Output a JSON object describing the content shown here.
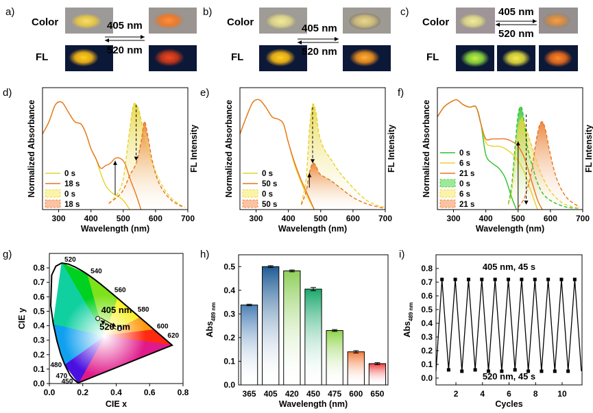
{
  "colors": {
    "orange": "#e8731e",
    "yellow": "#e6d22a",
    "green": "#2cc12a",
    "peach": "#f6a88a",
    "bars": [
      "#4a7fb5",
      "#1f5b96",
      "#8fcf5a",
      "#1aa86c",
      "#8fd44a",
      "#f07a3a",
      "#ee3a3a"
    ]
  },
  "row_a": {
    "label": "a)",
    "color_label": "Color",
    "fl_label": "FL",
    "wl_top": "405 nm",
    "wl_bottom": "520 nm"
  },
  "row_b": {
    "label": "b)",
    "color_label": "Color",
    "fl_label": "FL",
    "wl_top": "405 nm",
    "wl_bottom": "520 nm"
  },
  "row_c": {
    "label": "c)",
    "color_label": "Color",
    "fl_label": "FL",
    "wl_top": "405 nm",
    "wl_bottom": "520 nm"
  },
  "chart_data": [
    {
      "id": "d",
      "panel_label": "d)",
      "type": "line",
      "xlabel": "Wavelength (nm)",
      "ylabel_left": "Normalized Absorbance",
      "ylabel_right": "FL Intensity",
      "xlim": [
        250,
        700
      ],
      "xticks": [
        300,
        400,
        500,
        600,
        700
      ],
      "legend": [
        "0 s",
        "18 s",
        "0 s",
        "18 s"
      ],
      "series": [
        {
          "name": "0 s",
          "kind": "abs",
          "color": "#e6d22a",
          "x": [
            250,
            270,
            290,
            310,
            330,
            350,
            370,
            385,
            400,
            415,
            430,
            445,
            460,
            475,
            490,
            505,
            520
          ],
          "y": [
            0.62,
            0.72,
            0.86,
            0.88,
            0.8,
            0.72,
            0.7,
            0.62,
            0.5,
            0.42,
            0.3,
            0.2,
            0.15,
            0.12,
            0.1,
            0.06,
            0.0
          ]
        },
        {
          "name": "18 s",
          "kind": "abs",
          "color": "#e8731e",
          "x": [
            250,
            270,
            290,
            310,
            330,
            350,
            370,
            385,
            400,
            415,
            430,
            445,
            460,
            475,
            490,
            505,
            520,
            540,
            555
          ],
          "y": [
            0.62,
            0.72,
            0.86,
            0.88,
            0.8,
            0.72,
            0.7,
            0.62,
            0.5,
            0.42,
            0.34,
            0.36,
            0.38,
            0.42,
            0.42,
            0.38,
            0.26,
            0.12,
            0.0
          ]
        },
        {
          "name": "0 s",
          "kind": "fl",
          "color": "#e6d22a",
          "x": [
            455,
            480,
            500,
            515,
            530,
            540,
            550,
            565,
            585,
            610,
            640,
            670,
            690
          ],
          "y": [
            0.05,
            0.12,
            0.25,
            0.55,
            0.84,
            0.86,
            0.8,
            0.62,
            0.42,
            0.25,
            0.12,
            0.05,
            0.02
          ]
        },
        {
          "name": "18 s",
          "kind": "fl",
          "color": "#e8731e",
          "x": [
            455,
            480,
            500,
            520,
            540,
            555,
            565,
            575,
            590,
            610,
            640,
            670,
            690
          ],
          "y": [
            0.05,
            0.1,
            0.16,
            0.28,
            0.38,
            0.55,
            0.72,
            0.62,
            0.4,
            0.22,
            0.1,
            0.04,
            0.02
          ]
        }
      ]
    },
    {
      "id": "e",
      "panel_label": "e)",
      "type": "line",
      "xlabel": "Wavelength (nm)",
      "ylabel_left": "Normalized Absorbance",
      "ylabel_right": "FL Intensity",
      "xlim": [
        250,
        700
      ],
      "xticks": [
        300,
        400,
        500,
        600,
        700
      ],
      "legend": [
        "0 s",
        "50 s",
        "0 s",
        "50 s"
      ],
      "series": [
        {
          "name": "0 s",
          "kind": "abs",
          "color": "#e6d22a",
          "x": [
            250,
            270,
            290,
            310,
            330,
            350,
            370,
            385,
            400,
            420,
            440,
            460,
            480
          ],
          "y": [
            0.62,
            0.76,
            0.88,
            0.9,
            0.84,
            0.76,
            0.74,
            0.7,
            0.55,
            0.36,
            0.22,
            0.1,
            0.0
          ]
        },
        {
          "name": "50 s",
          "kind": "abs",
          "color": "#e8731e",
          "x": [
            250,
            270,
            290,
            310,
            330,
            350,
            370,
            385,
            400,
            420,
            440,
            460,
            480
          ],
          "y": [
            0.62,
            0.76,
            0.88,
            0.9,
            0.84,
            0.76,
            0.74,
            0.7,
            0.55,
            0.38,
            0.24,
            0.12,
            0.0
          ]
        },
        {
          "name": "0 s",
          "kind": "fl",
          "color": "#e6d22a",
          "x": [
            440,
            455,
            465,
            475,
            485,
            495,
            510,
            530,
            560,
            600,
            640,
            680,
            700
          ],
          "y": [
            0.05,
            0.25,
            0.65,
            0.86,
            0.8,
            0.62,
            0.5,
            0.42,
            0.3,
            0.18,
            0.08,
            0.03,
            0.02
          ]
        },
        {
          "name": "50 s",
          "kind": "fl",
          "color": "#e8731e",
          "x": [
            440,
            455,
            465,
            475,
            485,
            495,
            510,
            530,
            560,
            600,
            640,
            680,
            700
          ],
          "y": [
            0.04,
            0.15,
            0.3,
            0.38,
            0.36,
            0.3,
            0.27,
            0.24,
            0.18,
            0.1,
            0.05,
            0.02,
            0.01
          ]
        }
      ]
    },
    {
      "id": "f",
      "panel_label": "f)",
      "type": "line",
      "xlabel": "Wavelength (nm)",
      "ylabel_left": "Normalized Absorbance",
      "ylabel_right": "FL Intensity",
      "xlim": [
        250,
        700
      ],
      "xticks": [
        300,
        400,
        500,
        600,
        700
      ],
      "legend": [
        "0 s",
        "6 s",
        "21 s",
        "0 s",
        "6 s",
        "21 s"
      ],
      "series": [
        {
          "name": "0 s",
          "kind": "abs",
          "color": "#2cc12a",
          "x": [
            250,
            270,
            290,
            310,
            330,
            350,
            370,
            385,
            400,
            420,
            440,
            460,
            480,
            495
          ],
          "y": [
            0.76,
            0.84,
            0.88,
            0.9,
            0.86,
            0.84,
            0.84,
            0.7,
            0.45,
            0.38,
            0.34,
            0.26,
            0.1,
            0.0
          ]
        },
        {
          "name": "6 s",
          "kind": "abs",
          "color": "#e6d22a",
          "x": [
            250,
            270,
            290,
            310,
            330,
            350,
            370,
            385,
            400,
            420,
            440,
            460,
            480,
            500,
            520,
            540,
            560
          ],
          "y": [
            0.76,
            0.84,
            0.88,
            0.9,
            0.86,
            0.84,
            0.84,
            0.7,
            0.55,
            0.52,
            0.52,
            0.5,
            0.46,
            0.4,
            0.3,
            0.15,
            0.0
          ]
        },
        {
          "name": "21 s",
          "kind": "abs",
          "color": "#e8731e",
          "x": [
            250,
            270,
            290,
            310,
            330,
            350,
            370,
            385,
            400,
            420,
            440,
            460,
            480,
            500,
            520,
            540,
            560,
            575
          ],
          "y": [
            0.76,
            0.84,
            0.88,
            0.9,
            0.86,
            0.84,
            0.84,
            0.7,
            0.58,
            0.58,
            0.58,
            0.58,
            0.56,
            0.52,
            0.42,
            0.25,
            0.08,
            0.0
          ]
        },
        {
          "name": "0 s",
          "kind": "fl",
          "color": "#2cc12a",
          "x": [
            470,
            480,
            490,
            500,
            510,
            520,
            530,
            545,
            560,
            580,
            610,
            650,
            690
          ],
          "y": [
            0.05,
            0.2,
            0.5,
            0.78,
            0.84,
            0.7,
            0.5,
            0.35,
            0.22,
            0.12,
            0.06,
            0.02,
            0.01
          ]
        },
        {
          "name": "6 s",
          "kind": "fl",
          "color": "#e6d22a",
          "x": [
            470,
            480,
            490,
            500,
            510,
            520,
            535,
            550,
            570,
            600,
            640,
            690
          ],
          "y": [
            0.04,
            0.15,
            0.4,
            0.65,
            0.75,
            0.7,
            0.58,
            0.46,
            0.3,
            0.15,
            0.05,
            0.01
          ]
        },
        {
          "name": "21 s",
          "kind": "fl",
          "color": "#e8731e",
          "x": [
            500,
            520,
            540,
            555,
            565,
            575,
            585,
            600,
            620,
            650,
            690
          ],
          "y": [
            0.02,
            0.1,
            0.3,
            0.55,
            0.68,
            0.72,
            0.65,
            0.45,
            0.25,
            0.1,
            0.02
          ]
        }
      ]
    },
    {
      "id": "g",
      "panel_label": "g)",
      "type": "scatter",
      "xlabel": "CIE x",
      "ylabel": "CIE y",
      "xlim": [
        0.0,
        0.8
      ],
      "ylim": [
        0.0,
        0.9
      ],
      "xticks": [
        0.0,
        0.2,
        0.4,
        0.6,
        0.8
      ],
      "yticks": [
        0.0,
        0.1,
        0.2,
        0.3,
        0.4,
        0.5,
        0.6,
        0.7,
        0.8
      ],
      "locus_labels": [
        {
          "text": "520",
          "x": 0.074,
          "y": 0.834
        },
        {
          "text": "540",
          "x": 0.23,
          "y": 0.754
        },
        {
          "text": "560",
          "x": 0.373,
          "y": 0.624
        },
        {
          "text": "580",
          "x": 0.512,
          "y": 0.487
        },
        {
          "text": "600",
          "x": 0.627,
          "y": 0.372
        },
        {
          "text": "620",
          "x": 0.691,
          "y": 0.308
        },
        {
          "text": "480",
          "x": 0.091,
          "y": 0.133
        },
        {
          "text": "470",
          "x": 0.124,
          "y": 0.058
        },
        {
          "text": "450",
          "x": 0.157,
          "y": 0.018
        }
      ],
      "points": [
        {
          "x": 0.29,
          "y": 0.45
        },
        {
          "x": 0.42,
          "y": 0.38
        }
      ],
      "annotation_top": "405 nm",
      "annotation_bottom": "520 nm"
    },
    {
      "id": "h",
      "panel_label": "h)",
      "type": "bar",
      "xlabel": "Wavelength (nm)",
      "ylabel": "Abs",
      "ylabel_sub": "489 nm",
      "ylim": [
        0.0,
        0.55
      ],
      "yticks": [
        0.0,
        0.1,
        0.2,
        0.3,
        0.4,
        0.5
      ],
      "categories": [
        "365",
        "405",
        "420",
        "450",
        "475",
        "600",
        "650"
      ],
      "values": [
        0.338,
        0.5,
        0.482,
        0.405,
        0.23,
        0.14,
        0.09
      ],
      "errors": [
        0.003,
        0.004,
        0.004,
        0.007,
        0.004,
        0.005,
        0.004
      ]
    },
    {
      "id": "i",
      "panel_label": "i)",
      "type": "line",
      "xlabel": "Cycles",
      "ylabel": "Abs",
      "ylabel_sub": "489 nm",
      "xlim": [
        0.5,
        11.5
      ],
      "ylim": [
        -0.05,
        0.9
      ],
      "xticks": [
        2,
        4,
        6,
        8,
        10
      ],
      "yticks": [
        0.0,
        0.1,
        0.2,
        0.3,
        0.4,
        0.5,
        0.6,
        0.7,
        0.8
      ],
      "annotation_top": "405 nm, 45 s",
      "annotation_bottom": "520 nm, 45 s",
      "x": [
        0.5,
        0.95,
        1.45,
        1.95,
        2.45,
        2.95,
        3.45,
        3.95,
        4.45,
        4.95,
        5.45,
        5.95,
        6.45,
        6.95,
        7.45,
        7.95,
        8.45,
        8.95,
        9.45,
        9.95,
        10.45,
        10.95,
        11.45
      ],
      "y": [
        0.05,
        0.72,
        0.06,
        0.72,
        0.05,
        0.72,
        0.06,
        0.72,
        0.05,
        0.72,
        0.05,
        0.72,
        0.06,
        0.72,
        0.05,
        0.72,
        0.05,
        0.72,
        0.05,
        0.72,
        0.05,
        0.72,
        0.05
      ]
    }
  ]
}
